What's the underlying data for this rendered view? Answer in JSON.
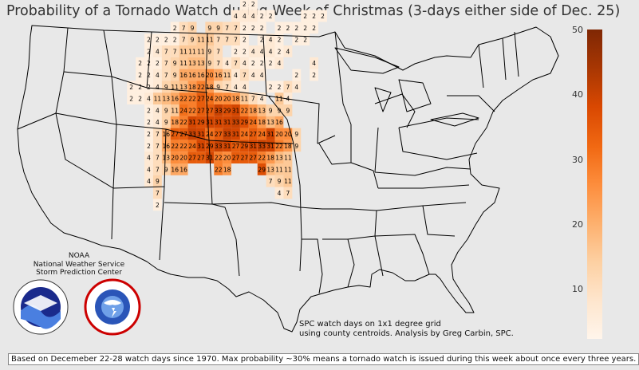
{
  "title": "Probability of a Tornado Watch during Week of Christmas (3-days either side of Dec. 25)",
  "colorbar": {
    "ticks": [
      "50",
      "40",
      "30",
      "20",
      "10"
    ],
    "low_color": "#fff5eb",
    "high_color": "#7f2704"
  },
  "noaa": {
    "line1": "NOAA",
    "line2": "National Weather Service",
    "line3": "Storm Prediction Center"
  },
  "credit": {
    "line1": "SPC watch days on 1x1 degree grid",
    "line2": "using county centroids. Analysis by Greg Carbin, SPC."
  },
  "footer": "Based on Decemeber 22-28 watch days since 1970. Max probability ~30% means a tornado watch is issued during this week about once every three years.",
  "grid_values": [
    {
      "lon": -84,
      "lat": 41,
      "v": 2
    },
    {
      "lon": -83,
      "lat": 41,
      "v": 2
    },
    {
      "lon": -85,
      "lat": 40,
      "v": 4
    },
    {
      "lon": -84,
      "lat": 40,
      "v": 4
    },
    {
      "lon": -83,
      "lat": 40,
      "v": 4
    },
    {
      "lon": -82,
      "lat": 40,
      "v": 2
    },
    {
      "lon": -81,
      "lat": 40,
      "v": 2
    },
    {
      "lon": -77,
      "lat": 40,
      "v": 2
    },
    {
      "lon": -76,
      "lat": 40,
      "v": 2
    },
    {
      "lon": -75,
      "lat": 40,
      "v": 2
    },
    {
      "lon": -92,
      "lat": 39,
      "v": 2
    },
    {
      "lon": -91,
      "lat": 39,
      "v": 7
    },
    {
      "lon": -90,
      "lat": 39,
      "v": 9
    },
    {
      "lon": -88,
      "lat": 39,
      "v": 9
    },
    {
      "lon": -87,
      "lat": 39,
      "v": 9
    },
    {
      "lon": -86,
      "lat": 39,
      "v": 7
    },
    {
      "lon": -85,
      "lat": 39,
      "v": 7
    },
    {
      "lon": -84,
      "lat": 39,
      "v": 2
    },
    {
      "lon": -83,
      "lat": 39,
      "v": 2
    },
    {
      "lon": -82,
      "lat": 39,
      "v": 2
    },
    {
      "lon": -80,
      "lat": 39,
      "v": 2
    },
    {
      "lon": -79,
      "lat": 39,
      "v": 2
    },
    {
      "lon": -78,
      "lat": 39,
      "v": 2
    },
    {
      "lon": -77,
      "lat": 39,
      "v": 2
    },
    {
      "lon": -76,
      "lat": 39,
      "v": 2
    },
    {
      "lon": -95,
      "lat": 38,
      "v": 2
    },
    {
      "lon": -94,
      "lat": 38,
      "v": 2
    },
    {
      "lon": -93,
      "lat": 38,
      "v": 2
    },
    {
      "lon": -92,
      "lat": 38,
      "v": 2
    },
    {
      "lon": -91,
      "lat": 38,
      "v": 7
    },
    {
      "lon": -90,
      "lat": 38,
      "v": 9
    },
    {
      "lon": -89,
      "lat": 38,
      "v": 11
    },
    {
      "lon": -88,
      "lat": 38,
      "v": 11
    },
    {
      "lon": -87,
      "lat": 38,
      "v": 7
    },
    {
      "lon": -86,
      "lat": 38,
      "v": 7
    },
    {
      "lon": -85,
      "lat": 38,
      "v": 7
    },
    {
      "lon": -84,
      "lat": 38,
      "v": 2
    },
    {
      "lon": -82,
      "lat": 38,
      "v": 2
    },
    {
      "lon": -81,
      "lat": 38,
      "v": 4
    },
    {
      "lon": -80,
      "lat": 38,
      "v": 2
    },
    {
      "lon": -78,
      "lat": 38,
      "v": 2
    },
    {
      "lon": -77,
      "lat": 38,
      "v": 2
    },
    {
      "lon": -95,
      "lat": 37,
      "v": 2
    },
    {
      "lon": -94,
      "lat": 37,
      "v": 4
    },
    {
      "lon": -93,
      "lat": 37,
      "v": 7
    },
    {
      "lon": -92,
      "lat": 37,
      "v": 7
    },
    {
      "lon": -91,
      "lat": 37,
      "v": 11
    },
    {
      "lon": -90,
      "lat": 37,
      "v": 11
    },
    {
      "lon": -89,
      "lat": 37,
      "v": 11
    },
    {
      "lon": -88,
      "lat": 37,
      "v": 9
    },
    {
      "lon": -87,
      "lat": 37,
      "v": 7
    },
    {
      "lon": -85,
      "lat": 37,
      "v": 2
    },
    {
      "lon": -84,
      "lat": 37,
      "v": 2
    },
    {
      "lon": -83,
      "lat": 37,
      "v": 4
    },
    {
      "lon": -82,
      "lat": 37,
      "v": 4
    },
    {
      "lon": -81,
      "lat": 37,
      "v": 4
    },
    {
      "lon": -80,
      "lat": 37,
      "v": 2
    },
    {
      "lon": -79,
      "lat": 37,
      "v": 4
    },
    {
      "lon": -96,
      "lat": 36,
      "v": 2
    },
    {
      "lon": -95,
      "lat": 36,
      "v": 2
    },
    {
      "lon": -94,
      "lat": 36,
      "v": 2
    },
    {
      "lon": -93,
      "lat": 36,
      "v": 7
    },
    {
      "lon": -92,
      "lat": 36,
      "v": 9
    },
    {
      "lon": -91,
      "lat": 36,
      "v": 11
    },
    {
      "lon": -90,
      "lat": 36,
      "v": 13
    },
    {
      "lon": -89,
      "lat": 36,
      "v": 13
    },
    {
      "lon": -88,
      "lat": 36,
      "v": 9
    },
    {
      "lon": -87,
      "lat": 36,
      "v": 7
    },
    {
      "lon": -86,
      "lat": 36,
      "v": 4
    },
    {
      "lon": -85,
      "lat": 36,
      "v": 7
    },
    {
      "lon": -84,
      "lat": 36,
      "v": 4
    },
    {
      "lon": -83,
      "lat": 36,
      "v": 2
    },
    {
      "lon": -82,
      "lat": 36,
      "v": 2
    },
    {
      "lon": -81,
      "lat": 36,
      "v": 2
    },
    {
      "lon": -80,
      "lat": 36,
      "v": 4
    },
    {
      "lon": -76,
      "lat": 36,
      "v": 4
    },
    {
      "lon": -96,
      "lat": 35,
      "v": 2
    },
    {
      "lon": -95,
      "lat": 35,
      "v": 2
    },
    {
      "lon": -94,
      "lat": 35,
      "v": 4
    },
    {
      "lon": -93,
      "lat": 35,
      "v": 7
    },
    {
      "lon": -92,
      "lat": 35,
      "v": 9
    },
    {
      "lon": -91,
      "lat": 35,
      "v": 16
    },
    {
      "lon": -90,
      "lat": 35,
      "v": 16
    },
    {
      "lon": -89,
      "lat": 35,
      "v": 16
    },
    {
      "lon": -88,
      "lat": 35,
      "v": 20
    },
    {
      "lon": -87,
      "lat": 35,
      "v": 16
    },
    {
      "lon": -86,
      "lat": 35,
      "v": 11
    },
    {
      "lon": -85,
      "lat": 35,
      "v": 4
    },
    {
      "lon": -84,
      "lat": 35,
      "v": 7
    },
    {
      "lon": -83,
      "lat": 35,
      "v": 4
    },
    {
      "lon": -82,
      "lat": 35,
      "v": 4
    },
    {
      "lon": -78,
      "lat": 35,
      "v": 2
    },
    {
      "lon": -76,
      "lat": 35,
      "v": 2
    },
    {
      "lon": -97,
      "lat": 34,
      "v": 2
    },
    {
      "lon": -96,
      "lat": 34,
      "v": 2
    },
    {
      "lon": -95,
      "lat": 34,
      "v": 2
    },
    {
      "lon": -94,
      "lat": 34,
      "v": 4
    },
    {
      "lon": -93,
      "lat": 34,
      "v": 9
    },
    {
      "lon": -92,
      "lat": 34,
      "v": 11
    },
    {
      "lon": -91,
      "lat": 34,
      "v": 13
    },
    {
      "lon": -90,
      "lat": 34,
      "v": 18
    },
    {
      "lon": -89,
      "lat": 34,
      "v": 22
    },
    {
      "lon": -88,
      "lat": 34,
      "v": 18
    },
    {
      "lon": -87,
      "lat": 34,
      "v": 9
    },
    {
      "lon": -86,
      "lat": 34,
      "v": 7
    },
    {
      "lon": -85,
      "lat": 34,
      "v": 4
    },
    {
      "lon": -84,
      "lat": 34,
      "v": 4
    },
    {
      "lon": -81,
      "lat": 34,
      "v": 2
    },
    {
      "lon": -80,
      "lat": 34,
      "v": 2
    },
    {
      "lon": -79,
      "lat": 34,
      "v": 7
    },
    {
      "lon": -78,
      "lat": 34,
      "v": 4
    },
    {
      "lon": -97,
      "lat": 33,
      "v": 2
    },
    {
      "lon": -96,
      "lat": 33,
      "v": 2
    },
    {
      "lon": -95,
      "lat": 33,
      "v": 4
    },
    {
      "lon": -94,
      "lat": 33,
      "v": 11
    },
    {
      "lon": -93,
      "lat": 33,
      "v": 13
    },
    {
      "lon": -92,
      "lat": 33,
      "v": 16
    },
    {
      "lon": -91,
      "lat": 33,
      "v": 22
    },
    {
      "lon": -90,
      "lat": 33,
      "v": 22
    },
    {
      "lon": -89,
      "lat": 33,
      "v": 27
    },
    {
      "lon": -88,
      "lat": 33,
      "v": 24
    },
    {
      "lon": -87,
      "lat": 33,
      "v": 20
    },
    {
      "lon": -86,
      "lat": 33,
      "v": 20
    },
    {
      "lon": -85,
      "lat": 33,
      "v": 18
    },
    {
      "lon": -84,
      "lat": 33,
      "v": 11
    },
    {
      "lon": -83,
      "lat": 33,
      "v": 7
    },
    {
      "lon": -82,
      "lat": 33,
      "v": 4
    },
    {
      "lon": -80,
      "lat": 33,
      "v": 11
    },
    {
      "lon": -79,
      "lat": 33,
      "v": 4
    },
    {
      "lon": -95,
      "lat": 32,
      "v": 2
    },
    {
      "lon": -94,
      "lat": 32,
      "v": 4
    },
    {
      "lon": -93,
      "lat": 32,
      "v": 9
    },
    {
      "lon": -92,
      "lat": 32,
      "v": 11
    },
    {
      "lon": -91,
      "lat": 32,
      "v": 24
    },
    {
      "lon": -90,
      "lat": 32,
      "v": 22
    },
    {
      "lon": -89,
      "lat": 32,
      "v": 27
    },
    {
      "lon": -88,
      "lat": 32,
      "v": 27
    },
    {
      "lon": -87,
      "lat": 32,
      "v": 33
    },
    {
      "lon": -86,
      "lat": 32,
      "v": 29
    },
    {
      "lon": -85,
      "lat": 32,
      "v": 31
    },
    {
      "lon": -84,
      "lat": 32,
      "v": 22
    },
    {
      "lon": -83,
      "lat": 32,
      "v": 18
    },
    {
      "lon": -82,
      "lat": 32,
      "v": 13
    },
    {
      "lon": -81,
      "lat": 32,
      "v": 9
    },
    {
      "lon": -80,
      "lat": 32,
      "v": 9
    },
    {
      "lon": -79,
      "lat": 32,
      "v": 9
    },
    {
      "lon": -95,
      "lat": 31,
      "v": 2
    },
    {
      "lon": -94,
      "lat": 31,
      "v": 4
    },
    {
      "lon": -93,
      "lat": 31,
      "v": 9
    },
    {
      "lon": -92,
      "lat": 31,
      "v": 18
    },
    {
      "lon": -91,
      "lat": 31,
      "v": 22
    },
    {
      "lon": -90,
      "lat": 31,
      "v": 31
    },
    {
      "lon": -89,
      "lat": 31,
      "v": 29
    },
    {
      "lon": -88,
      "lat": 31,
      "v": 31
    },
    {
      "lon": -87,
      "lat": 31,
      "v": 31
    },
    {
      "lon": -86,
      "lat": 31,
      "v": 31
    },
    {
      "lon": -85,
      "lat": 31,
      "v": 33
    },
    {
      "lon": -84,
      "lat": 31,
      "v": 29
    },
    {
      "lon": -83,
      "lat": 31,
      "v": 24
    },
    {
      "lon": -82,
      "lat": 31,
      "v": 18
    },
    {
      "lon": -81,
      "lat": 31,
      "v": 13
    },
    {
      "lon": -80,
      "lat": 31,
      "v": 16
    },
    {
      "lon": -95,
      "lat": 30,
      "v": 2
    },
    {
      "lon": -94,
      "lat": 30,
      "v": 7
    },
    {
      "lon": -93,
      "lat": 30,
      "v": 16
    },
    {
      "lon": -92,
      "lat": 30,
      "v": 27
    },
    {
      "lon": -91,
      "lat": 30,
      "v": 27
    },
    {
      "lon": -90,
      "lat": 30,
      "v": 33
    },
    {
      "lon": -89,
      "lat": 30,
      "v": 31
    },
    {
      "lon": -88,
      "lat": 30,
      "v": 24
    },
    {
      "lon": -87,
      "lat": 30,
      "v": 27
    },
    {
      "lon": -86,
      "lat": 30,
      "v": 33
    },
    {
      "lon": -85,
      "lat": 30,
      "v": 31
    },
    {
      "lon": -84,
      "lat": 30,
      "v": 24
    },
    {
      "lon": -83,
      "lat": 30,
      "v": 27
    },
    {
      "lon": -82,
      "lat": 30,
      "v": 24
    },
    {
      "lon": -81,
      "lat": 30,
      "v": 31
    },
    {
      "lon": -80,
      "lat": 30,
      "v": 20
    },
    {
      "lon": -79,
      "lat": 30,
      "v": 20
    },
    {
      "lon": -78,
      "lat": 30,
      "v": 9
    },
    {
      "lon": -95,
      "lat": 29,
      "v": 2
    },
    {
      "lon": -94,
      "lat": 29,
      "v": 7
    },
    {
      "lon": -93,
      "lat": 29,
      "v": 16
    },
    {
      "lon": -92,
      "lat": 29,
      "v": 22
    },
    {
      "lon": -91,
      "lat": 29,
      "v": 22
    },
    {
      "lon": -90,
      "lat": 29,
      "v": 24
    },
    {
      "lon": -89,
      "lat": 29,
      "v": 31
    },
    {
      "lon": -88,
      "lat": 29,
      "v": 29
    },
    {
      "lon": -87,
      "lat": 29,
      "v": 33
    },
    {
      "lon": -86,
      "lat": 29,
      "v": 31
    },
    {
      "lon": -85,
      "lat": 29,
      "v": 27
    },
    {
      "lon": -84,
      "lat": 29,
      "v": 29
    },
    {
      "lon": -83,
      "lat": 29,
      "v": 31
    },
    {
      "lon": -82,
      "lat": 29,
      "v": 33
    },
    {
      "lon": -81,
      "lat": 29,
      "v": 31
    },
    {
      "lon": -80,
      "lat": 29,
      "v": 22
    },
    {
      "lon": -79,
      "lat": 29,
      "v": 18
    },
    {
      "lon": -78,
      "lat": 29,
      "v": 9
    },
    {
      "lon": -95,
      "lat": 28,
      "v": 4
    },
    {
      "lon": -94,
      "lat": 28,
      "v": 7
    },
    {
      "lon": -93,
      "lat": 28,
      "v": 13
    },
    {
      "lon": -92,
      "lat": 28,
      "v": 20
    },
    {
      "lon": -91,
      "lat": 28,
      "v": 20
    },
    {
      "lon": -90,
      "lat": 28,
      "v": 27
    },
    {
      "lon": -89,
      "lat": 28,
      "v": 27
    },
    {
      "lon": -88,
      "lat": 28,
      "v": 31
    },
    {
      "lon": -87,
      "lat": 28,
      "v": 22
    },
    {
      "lon": -86,
      "lat": 28,
      "v": 20
    },
    {
      "lon": -85,
      "lat": 28,
      "v": 27
    },
    {
      "lon": -84,
      "lat": 28,
      "v": 27
    },
    {
      "lon": -83,
      "lat": 28,
      "v": 27
    },
    {
      "lon": -82,
      "lat": 28,
      "v": 22
    },
    {
      "lon": -81,
      "lat": 28,
      "v": 18
    },
    {
      "lon": -80,
      "lat": 28,
      "v": 13
    },
    {
      "lon": -79,
      "lat": 28,
      "v": 11
    },
    {
      "lon": -95,
      "lat": 27,
      "v": 4
    },
    {
      "lon": -94,
      "lat": 27,
      "v": 7
    },
    {
      "lon": -93,
      "lat": 27,
      "v": 9
    },
    {
      "lon": -92,
      "lat": 27,
      "v": 16
    },
    {
      "lon": -91,
      "lat": 27,
      "v": 16
    },
    {
      "lon": -87,
      "lat": 27,
      "v": 22
    },
    {
      "lon": -86,
      "lat": 27,
      "v": 18
    },
    {
      "lon": -82,
      "lat": 27,
      "v": 29
    },
    {
      "lon": -81,
      "lat": 27,
      "v": 13
    },
    {
      "lon": -80,
      "lat": 27,
      "v": 11
    },
    {
      "lon": -79,
      "lat": 27,
      "v": 11
    },
    {
      "lon": -95,
      "lat": 26,
      "v": 4
    },
    {
      "lon": -94,
      "lat": 26,
      "v": 9
    },
    {
      "lon": -81,
      "lat": 26,
      "v": 7
    },
    {
      "lon": -80,
      "lat": 26,
      "v": 9
    },
    {
      "lon": -79,
      "lat": 26,
      "v": 11
    },
    {
      "lon": -94,
      "lat": 25,
      "v": 7
    },
    {
      "lon": -80,
      "lat": 25,
      "v": 4
    },
    {
      "lon": -79,
      "lat": 25,
      "v": 7
    },
    {
      "lon": -94,
      "lat": 24,
      "v": 2
    }
  ]
}
